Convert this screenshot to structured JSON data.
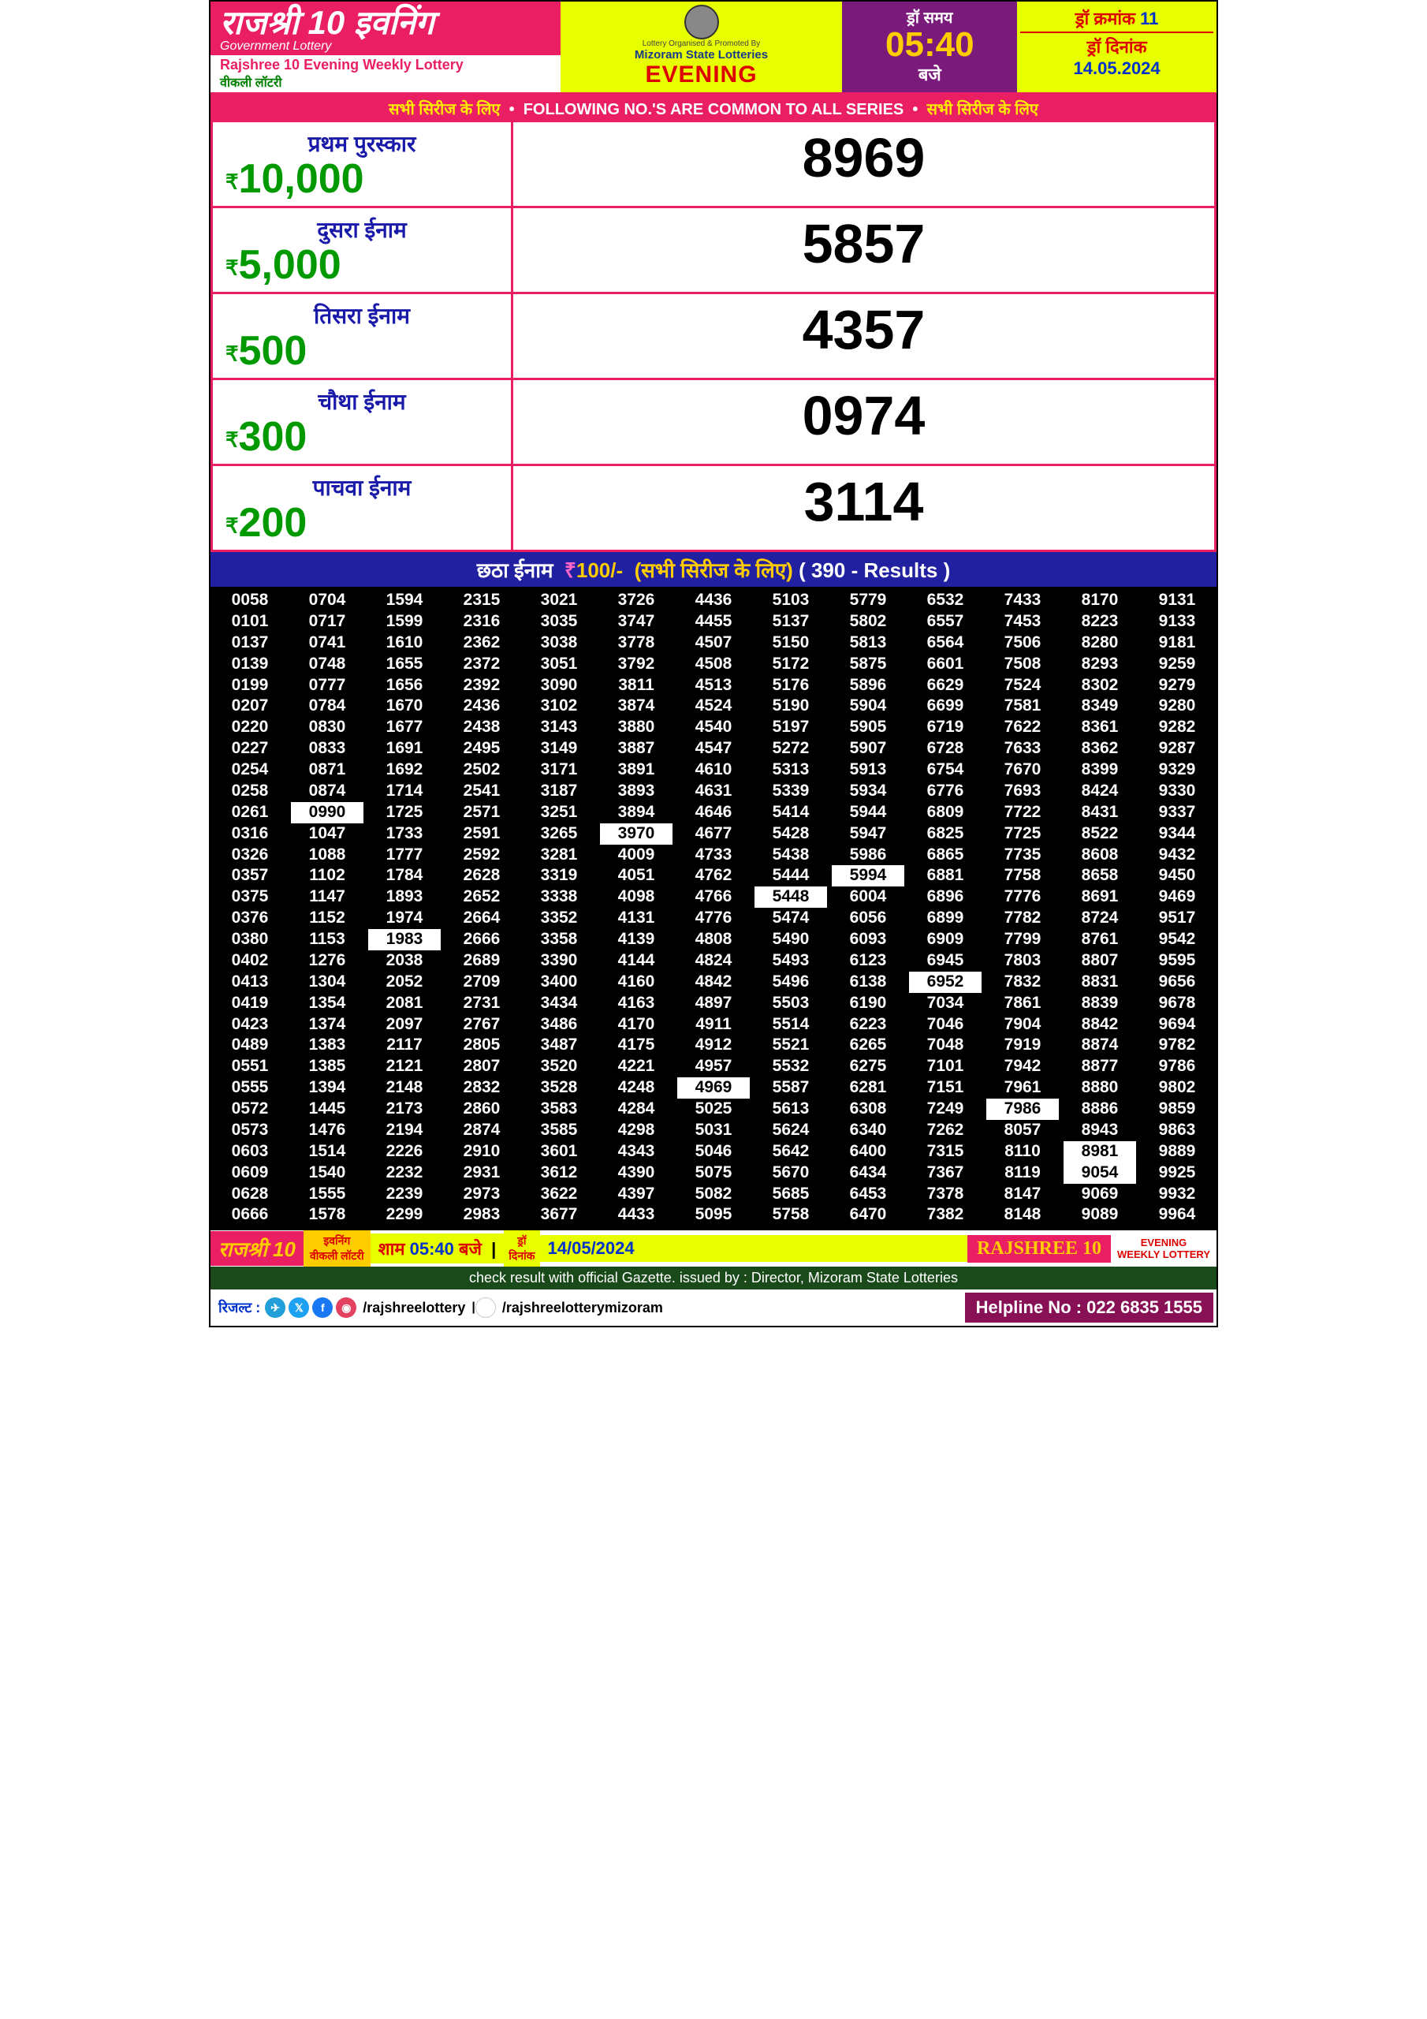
{
  "header": {
    "title_hindi": "राजश्री 10 इवनिंग",
    "gov": "Government Lottery",
    "eng": "Rajshree 10 Evening Weekly Lottery",
    "hindi_sub": "वीकली लॉटरी",
    "organised": "Lottery Organised & Promoted By",
    "org": "Mizoram State Lotteries",
    "evening": "EVENING",
    "time_label": "ड्रॉ समय",
    "time": "05:40",
    "time_unit": "बजे",
    "draw_no_label": "ड्रॉ क्रमांक",
    "draw_no": "11",
    "date_label": "ड्रॉ दिनांक",
    "date": "14.05.2024"
  },
  "common": {
    "left": "सभी सिरीज के लिए",
    "mid": "FOLLOWING NO.'S ARE COMMON TO ALL SERIES",
    "right": "सभी सिरीज के लिए"
  },
  "prizes": [
    {
      "label": "प्रथम पुरस्कार",
      "amount": "10,000",
      "number": "8969"
    },
    {
      "label": "दुसरा ईनाम",
      "amount": "5,000",
      "number": "5857"
    },
    {
      "label": "तिसरा ईनाम",
      "amount": "500",
      "number": "4357"
    },
    {
      "label": "चौथा ईनाम",
      "amount": "300",
      "number": "0974"
    },
    {
      "label": "पाचवा ईनाम",
      "amount": "200",
      "number": "3114"
    }
  ],
  "sixth": {
    "label": "छठा ईनाम",
    "amount": "100/-",
    "note": "(सभी सिरीज के लिए)",
    "count": "( 390 - Results )"
  },
  "results": [
    [
      "0058",
      "0101",
      "0137",
      "0139",
      "0199",
      "0207",
      "0220",
      "0227",
      "0254",
      "0258",
      "0261",
      "0316",
      "0326",
      "0357",
      "0375",
      "0376",
      "0380",
      "0402",
      "0413",
      "0419",
      "0423",
      "0489",
      "0551",
      "0555",
      "0572",
      "0573",
      "0603",
      "0609",
      "0628",
      "0666"
    ],
    [
      "0704",
      "0717",
      "0741",
      "0748",
      "0777",
      "0784",
      "0830",
      "0833",
      "0871",
      "0874",
      "0990",
      "1047",
      "1088",
      "1102",
      "1147",
      "1152",
      "1153",
      "1276",
      "1304",
      "1354",
      "1374",
      "1383",
      "1385",
      "1394",
      "1445",
      "1476",
      "1514",
      "1540",
      "1555",
      "1578"
    ],
    [
      "1594",
      "1599",
      "1610",
      "1655",
      "1656",
      "1670",
      "1677",
      "1691",
      "1692",
      "1714",
      "1725",
      "1733",
      "1777",
      "1784",
      "1893",
      "1974",
      "1983",
      "2038",
      "2052",
      "2081",
      "2097",
      "2117",
      "2121",
      "2148",
      "2173",
      "2194",
      "2226",
      "2232",
      "2239",
      "2299"
    ],
    [
      "2315",
      "2316",
      "2362",
      "2372",
      "2392",
      "2436",
      "2438",
      "2495",
      "2502",
      "2541",
      "2571",
      "2591",
      "2592",
      "2628",
      "2652",
      "2664",
      "2666",
      "2689",
      "2709",
      "2731",
      "2767",
      "2805",
      "2807",
      "2832",
      "2860",
      "2874",
      "2910",
      "2931",
      "2973",
      "2983"
    ],
    [
      "3021",
      "3035",
      "3038",
      "3051",
      "3090",
      "3102",
      "3143",
      "3149",
      "3171",
      "3187",
      "3251",
      "3265",
      "3281",
      "3319",
      "3338",
      "3352",
      "3358",
      "3390",
      "3400",
      "3434",
      "3486",
      "3487",
      "3520",
      "3528",
      "3583",
      "3585",
      "3601",
      "3612",
      "3622",
      "3677"
    ],
    [
      "3726",
      "3747",
      "3778",
      "3792",
      "3811",
      "3874",
      "3880",
      "3887",
      "3891",
      "3893",
      "3894",
      "3970",
      "4009",
      "4051",
      "4098",
      "4131",
      "4139",
      "4144",
      "4160",
      "4163",
      "4170",
      "4175",
      "4221",
      "4248",
      "4284",
      "4298",
      "4343",
      "4390",
      "4397",
      "4433"
    ],
    [
      "4436",
      "4455",
      "4507",
      "4508",
      "4513",
      "4524",
      "4540",
      "4547",
      "4610",
      "4631",
      "4646",
      "4677",
      "4733",
      "4762",
      "4766",
      "4776",
      "4808",
      "4824",
      "4842",
      "4897",
      "4911",
      "4912",
      "4957",
      "4969",
      "5025",
      "5031",
      "5046",
      "5075",
      "5082",
      "5095"
    ],
    [
      "5103",
      "5137",
      "5150",
      "5172",
      "5176",
      "5190",
      "5197",
      "5272",
      "5313",
      "5339",
      "5414",
      "5428",
      "5438",
      "5444",
      "5448",
      "5474",
      "5490",
      "5493",
      "5496",
      "5503",
      "5514",
      "5521",
      "5532",
      "5587",
      "5613",
      "5624",
      "5642",
      "5670",
      "5685",
      "5758"
    ],
    [
      "5779",
      "5802",
      "5813",
      "5875",
      "5896",
      "5904",
      "5905",
      "5907",
      "5913",
      "5934",
      "5944",
      "5947",
      "5986",
      "5994",
      "6004",
      "6056",
      "6093",
      "6123",
      "6138",
      "6190",
      "6223",
      "6265",
      "6275",
      "6281",
      "6308",
      "6340",
      "6400",
      "6434",
      "6453",
      "6470"
    ],
    [
      "6532",
      "6557",
      "6564",
      "6601",
      "6629",
      "6699",
      "6719",
      "6728",
      "6754",
      "6776",
      "6809",
      "6825",
      "6865",
      "6881",
      "6896",
      "6899",
      "6909",
      "6945",
      "6952",
      "7034",
      "7046",
      "7048",
      "7101",
      "7151",
      "7249",
      "7262",
      "7315",
      "7367",
      "7378",
      "7382"
    ],
    [
      "7433",
      "7453",
      "7506",
      "7508",
      "7524",
      "7581",
      "7622",
      "7633",
      "7670",
      "7693",
      "7722",
      "7725",
      "7735",
      "7758",
      "7776",
      "7782",
      "7799",
      "7803",
      "7832",
      "7861",
      "7904",
      "7919",
      "7942",
      "7961",
      "7986",
      "8057",
      "8110",
      "8119",
      "8147",
      "8148"
    ],
    [
      "8170",
      "8223",
      "8280",
      "8293",
      "8302",
      "8349",
      "8361",
      "8362",
      "8399",
      "8424",
      "8431",
      "8522",
      "8608",
      "8658",
      "8691",
      "8724",
      "8761",
      "8807",
      "8831",
      "8839",
      "8842",
      "8874",
      "8877",
      "8880",
      "8886",
      "8943",
      "8981",
      "9054",
      "9069",
      "9089"
    ],
    [
      "9131",
      "9133",
      "9181",
      "9259",
      "9279",
      "9280",
      "9282",
      "9287",
      "9329",
      "9330",
      "9337",
      "9344",
      "9432",
      "9450",
      "9469",
      "9517",
      "9542",
      "9595",
      "9656",
      "9678",
      "9694",
      "9782",
      "9786",
      "9802",
      "9859",
      "9863",
      "9889",
      "9925",
      "9932",
      "9964"
    ]
  ],
  "results_inverted": {
    "1": [
      10
    ],
    "2": [
      16
    ],
    "5": [
      11
    ],
    "6": [
      23
    ],
    "7": [
      14
    ],
    "8": [
      13
    ],
    "9": [
      18
    ],
    "10": [
      24
    ],
    "11": [
      26,
      27
    ]
  },
  "footer": {
    "brand": "राजश्री 10",
    "sub1": "इवनिंग",
    "sub2": "वीकली लॉटरी",
    "time_label": "शाम",
    "time": "05:40",
    "time_unit": "बजे",
    "date_label1": "ड्रॉ",
    "date_label2": "दिनांक",
    "date": "14/05/2024",
    "brand_eng": "RAJSHREE 10",
    "tag1": "EVENING",
    "tag2": "WEEKLY LOTTERY"
  },
  "gazette": "check result with official Gazette. issued by : Director, Mizoram State Lotteries",
  "social": {
    "label": "रिजल्ट :",
    "handle1": "/rajshreelottery",
    "handle2": "/rajshreelotterymizoram",
    "helpline": "Helpline No : 022 6835 1555"
  }
}
